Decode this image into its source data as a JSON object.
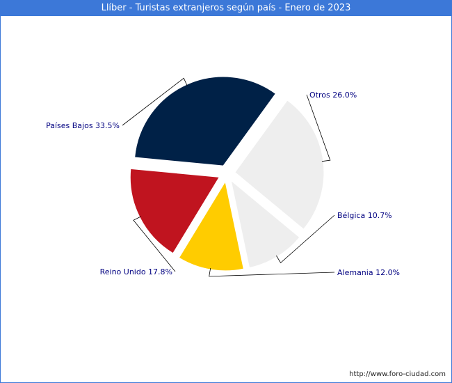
{
  "title": "Llíber - Turistas extranjeros según país - Enero de 2023",
  "footer": {
    "url": "http://www.foro-ciudad.com"
  },
  "chart_data": {
    "type": "pie",
    "exploded": true,
    "slices": [
      {
        "label": "Otros",
        "value": 26.0,
        "display": "Otros 26.0%",
        "color": "#eeeeee"
      },
      {
        "label": "Bélgica",
        "value": 10.7,
        "display": "Bélgica 10.7%",
        "color": "#eeeeee"
      },
      {
        "label": "Alemania",
        "value": 12.0,
        "display": "Alemania 12.0%",
        "color": "#ffcc00"
      },
      {
        "label": "Reino Unido",
        "value": 17.8,
        "display": "Reino Unido 17.8%",
        "color": "#c0141f"
      },
      {
        "label": "Países Bajos",
        "value": 33.5,
        "display": "Países Bajos 33.5%",
        "color": "#002147"
      }
    ],
    "label_color": "#000080",
    "leader_color": "#000000"
  }
}
